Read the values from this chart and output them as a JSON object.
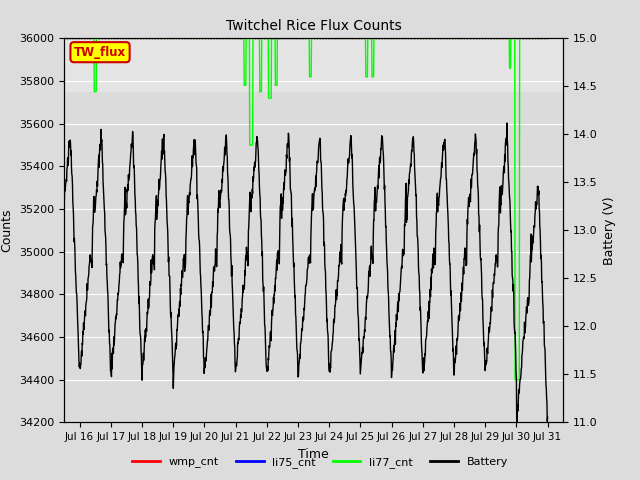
{
  "title": "Twitchel Rice Flux Counts",
  "ylabel_left": "Counts",
  "ylabel_right": "Battery (V)",
  "xlabel": "Time",
  "ylim_left": [
    34200,
    36000
  ],
  "ylim_right": [
    11.0,
    15.0
  ],
  "yticks_left": [
    34200,
    34400,
    34600,
    34800,
    35000,
    35200,
    35400,
    35600,
    35800,
    36000
  ],
  "yticks_right": [
    11.0,
    11.5,
    12.0,
    12.5,
    13.0,
    13.5,
    14.0,
    14.5,
    15.0
  ],
  "xtick_labels": [
    "Jul 16",
    "Jul 17",
    "Jul 18",
    "Jul 19",
    "Jul 20",
    "Jul 21",
    "Jul 22",
    "Jul 23",
    "Jul 24",
    "Jul 25",
    "Jul 26",
    "Jul 27",
    "Jul 28",
    "Jul 29",
    "Jul 30",
    "Jul 31"
  ],
  "bg_color": "#dcdcdc",
  "plot_bg_upper": "#e8e8e8",
  "plot_bg_lower": "#d0d0d0",
  "annotation_label": "TW_flux",
  "li77_color": "#00ff00",
  "battery_color": "#000000",
  "wmp_color": "#ff0000",
  "li75_color": "#0000ff",
  "legend_labels": [
    "wmp_cnt",
    "li75_cnt",
    "li77_cnt",
    "Battery"
  ],
  "legend_colors": [
    "#ff0000",
    "#0000ff",
    "#00ff00",
    "#000000"
  ],
  "n_days": 16,
  "battery_peak": 14.0,
  "battery_trough": 11.5,
  "battery_noise": 0.05,
  "li77_base": 36000,
  "figsize": [
    6.4,
    4.8
  ],
  "dpi": 100
}
